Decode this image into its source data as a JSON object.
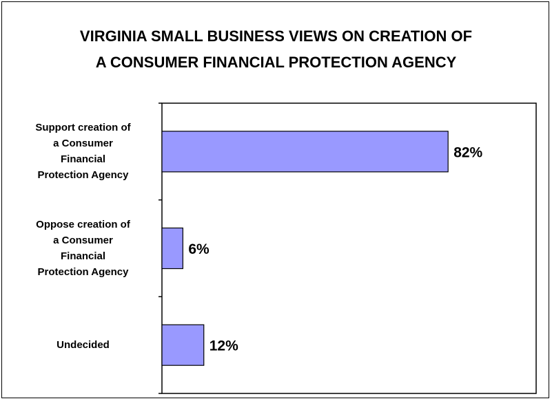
{
  "chart_data": {
    "type": "bar",
    "orientation": "horizontal",
    "title": "VIRGINIA SMALL BUSINESS VIEWS ON CREATION OF A CONSUMER FINANCIAL PROTECTION AGENCY",
    "title_lines": [
      "VIRGINIA SMALL BUSINESS VIEWS ON CREATION OF",
      "A CONSUMER FINANCIAL PROTECTION AGENCY"
    ],
    "categories": [
      "Support creation of a Consumer Financial Protection Agency",
      "Oppose creation of a Consumer Financial Protection Agency",
      "Undecided"
    ],
    "category_lines": [
      [
        "Support creation of",
        "a Consumer",
        "Financial",
        "Protection Agency"
      ],
      [
        "Oppose creation of",
        "a Consumer",
        "Financial",
        "Protection Agency"
      ],
      [
        "Undecided"
      ]
    ],
    "values": [
      82,
      6,
      12
    ],
    "value_labels": [
      "82%",
      "6%",
      "12%"
    ],
    "xlim": [
      0,
      100
    ],
    "xlabel": "",
    "ylabel": "",
    "grid": false,
    "legend": "none",
    "bar_color": "#9999ff",
    "bar_edge_color": "#000000"
  }
}
